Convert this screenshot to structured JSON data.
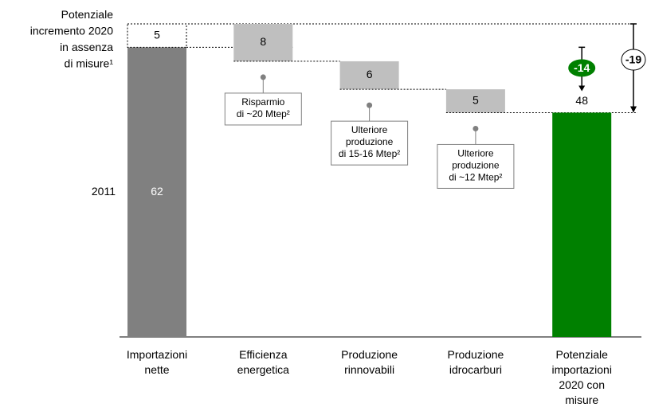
{
  "chart_data": {
    "type": "waterfall",
    "categories": [
      "Importazioni\nnette",
      "Efficienza\nenergetica",
      "Produzione\nrinnovabili",
      "Produzione\nidrocarburi",
      "Potenziale\nimportazioni\n2020 con\nmisure"
    ],
    "values": [
      62,
      -8,
      -6,
      -5,
      48
    ],
    "value_labels": [
      "62",
      "8",
      "6",
      "5",
      "48"
    ],
    "increment": 5,
    "base_label": "2011",
    "increment_label": "Potenziale\nincremento 2020\nin assenza\ndi misure¹",
    "notes": [
      null,
      "Risparmio\ndi ~20 Mtep²",
      "Ulteriore\nproduzione\ndi 15-16 Mtep²",
      "Ulteriore\nproduzione\ndi ~12 Mtep²",
      null
    ],
    "differences": [
      -14,
      -19
    ],
    "colors": {
      "base": "#808080",
      "decrease": "#bfbfbf",
      "total": "#008000",
      "increment": "#ffffff"
    },
    "ylim": [
      0,
      67
    ]
  }
}
